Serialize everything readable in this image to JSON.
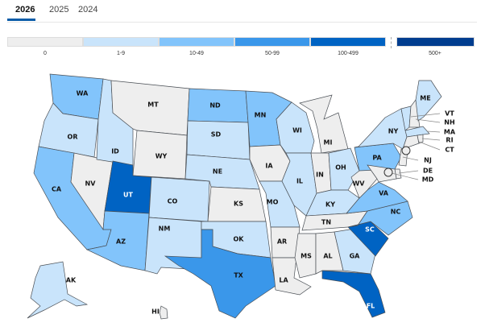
{
  "tabs": [
    {
      "label": "2026",
      "active": true
    },
    {
      "label": "2025"
    },
    {
      "label": "2024"
    }
  ],
  "legend": [
    {
      "label": "0",
      "color": "#eeeeee"
    },
    {
      "label": "1-9",
      "color": "#c9e4fb"
    },
    {
      "label": "10-49",
      "color": "#82c4fb"
    },
    {
      "label": "50-99",
      "color": "#3a97ea"
    },
    {
      "label": "100-499",
      "color": "#0063c3"
    },
    {
      "label": "500+",
      "color": "#003d8f"
    }
  ],
  "states": {
    "WA": "10-49",
    "OR": "1-9",
    "CA": "10-49",
    "NV": "0",
    "ID": "1-9",
    "MT": "0",
    "WY": "0",
    "UT": "100-499",
    "AZ": "10-49",
    "CO": "1-9",
    "NM": "1-9",
    "ND": "10-49",
    "SD": "1-9",
    "NE": "1-9",
    "KS": "0",
    "OK": "1-9",
    "TX": "50-99",
    "MN": "10-49",
    "IA": "0",
    "MO": "1-9",
    "AR": "0",
    "LA": "0",
    "WI": "1-9",
    "IL": "1-9",
    "MI": "0",
    "IN": "0",
    "OH": "1-9",
    "KY": "1-9",
    "TN": "0",
    "MS": "0",
    "AL": "0",
    "GA": "1-9",
    "FL": "100-499",
    "SC": "100-499",
    "NC": "10-49",
    "VA": "10-49",
    "WV": "0",
    "PA": "10-49",
    "NY": "1-9",
    "VT": "1-9",
    "NH": "0",
    "ME": "1-9",
    "MA": "1-9",
    "RI": "0",
    "CT": "0",
    "NJ": "0",
    "DE": "0",
    "MD": "0",
    "AK": "1-9",
    "HI": "0"
  }
}
